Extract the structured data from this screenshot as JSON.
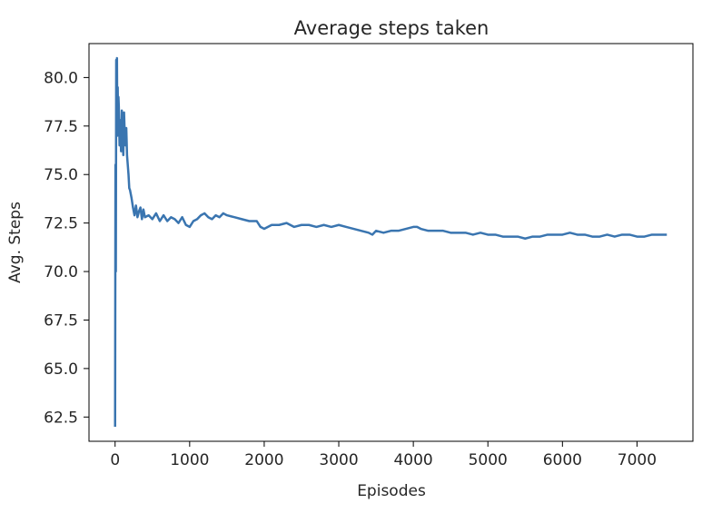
{
  "chart_data": {
    "type": "line",
    "title": "Average steps taken",
    "xlabel": "Episodes",
    "ylabel": "Avg. Steps",
    "xlim": [
      -350,
      7750
    ],
    "ylim": [
      61.25,
      81.75
    ],
    "xticks": [
      0,
      1000,
      2000,
      3000,
      4000,
      5000,
      6000,
      7000
    ],
    "xtick_labels": [
      "0",
      "1000",
      "2000",
      "3000",
      "4000",
      "5000",
      "6000",
      "7000"
    ],
    "yticks": [
      62.5,
      65.0,
      67.5,
      70.0,
      72.5,
      75.0,
      77.5,
      80.0
    ],
    "ytick_labels": [
      "62.5",
      "65.0",
      "67.5",
      "70.0",
      "72.5",
      "75.0",
      "77.5",
      "80.0"
    ],
    "grid": false,
    "series_color": "#3a75b0",
    "series": [
      {
        "x": [
          0,
          5,
          10,
          15,
          20,
          25,
          30,
          35,
          40,
          45,
          50,
          60,
          70,
          80,
          90,
          100,
          110,
          120,
          130,
          140,
          150,
          160,
          170,
          180,
          190,
          200,
          220,
          240,
          260,
          280,
          300,
          320,
          340,
          360,
          380,
          400,
          450,
          500,
          550,
          600,
          650,
          700,
          750,
          800,
          850,
          900,
          950,
          1000,
          1050,
          1100,
          1150,
          1200,
          1250,
          1300,
          1350,
          1400,
          1450,
          1500,
          1600,
          1700,
          1800,
          1900,
          1950,
          2000,
          2100,
          2200,
          2300,
          2400,
          2500,
          2600,
          2700,
          2800,
          2900,
          3000,
          3100,
          3200,
          3300,
          3400,
          3450,
          3500,
          3600,
          3700,
          3800,
          3900,
          4000,
          4050,
          4100,
          4200,
          4300,
          4400,
          4500,
          4600,
          4700,
          4800,
          4900,
          5000,
          5100,
          5200,
          5300,
          5400,
          5500,
          5600,
          5700,
          5800,
          5900,
          6000,
          6100,
          6200,
          6300,
          6400,
          6500,
          6600,
          6700,
          6800,
          6900,
          7000,
          7100,
          7200,
          7300,
          7400
        ],
        "y": [
          62.0,
          75.5,
          70.0,
          80.9,
          78.0,
          81.0,
          77.0,
          79.5,
          77.5,
          79.0,
          78.5,
          76.5,
          77.8,
          76.2,
          78.3,
          77.0,
          76.0,
          78.2,
          77.0,
          76.5,
          77.4,
          76.0,
          75.5,
          75.0,
          74.3,
          74.2,
          73.8,
          73.3,
          72.9,
          73.4,
          72.8,
          73.1,
          73.3,
          72.7,
          73.2,
          72.8,
          72.9,
          72.7,
          73.0,
          72.6,
          72.9,
          72.6,
          72.8,
          72.7,
          72.5,
          72.8,
          72.4,
          72.3,
          72.6,
          72.7,
          72.9,
          73.0,
          72.8,
          72.7,
          72.9,
          72.8,
          73.0,
          72.9,
          72.8,
          72.7,
          72.6,
          72.6,
          72.3,
          72.2,
          72.4,
          72.4,
          72.5,
          72.3,
          72.4,
          72.4,
          72.3,
          72.4,
          72.3,
          72.4,
          72.3,
          72.2,
          72.1,
          72.0,
          71.9,
          72.1,
          72.0,
          72.1,
          72.1,
          72.2,
          72.3,
          72.3,
          72.2,
          72.1,
          72.1,
          72.1,
          72.0,
          72.0,
          72.0,
          71.9,
          72.0,
          71.9,
          71.9,
          71.8,
          71.8,
          71.8,
          71.7,
          71.8,
          71.8,
          71.9,
          71.9,
          71.9,
          72.0,
          71.9,
          71.9,
          71.8,
          71.8,
          71.9,
          71.8,
          71.9,
          71.9,
          71.8,
          71.8,
          71.9,
          71.9,
          71.9
        ]
      }
    ]
  }
}
